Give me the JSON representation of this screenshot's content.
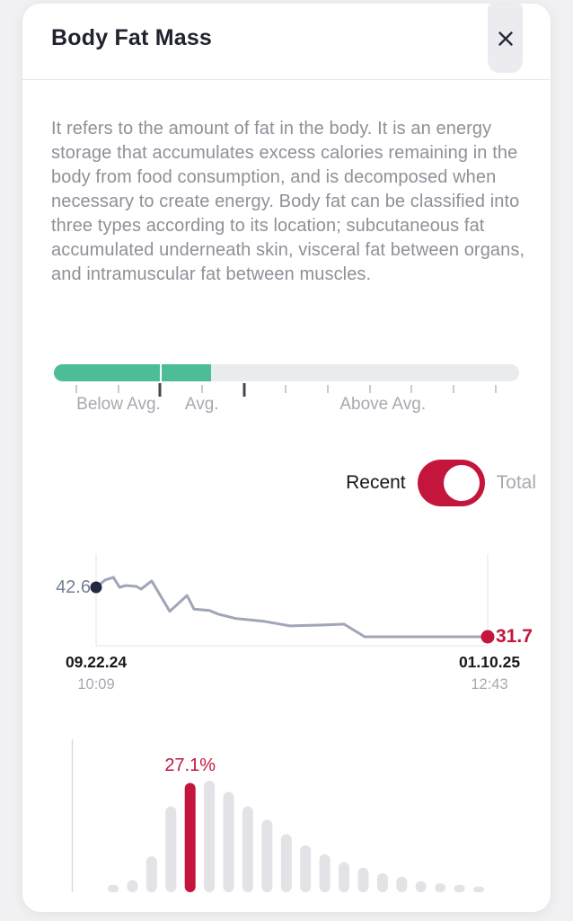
{
  "header": {
    "title": "Body Fat Mass"
  },
  "description": "It refers to the amount of fat in the body. It is an energy storage that accumulates excess calories remaining in the body from food consumption, and is decomposed when necessary to create energy. Body fat can be classified into three types according to its location; subcutaneous fat accumulated underneath skin, visceral fat between organs, and intramuscular fat between muscles.",
  "range_scale": {
    "fill_fraction": 0.338,
    "divider_fraction": 0.228,
    "ticks": [
      {
        "pos": 0.048
      },
      {
        "pos": 0.139
      },
      {
        "pos": 0.228,
        "dark": true
      },
      {
        "pos": 0.318
      },
      {
        "pos": 0.409,
        "dark": true
      },
      {
        "pos": 0.498
      },
      {
        "pos": 0.589
      },
      {
        "pos": 0.679
      },
      {
        "pos": 0.768
      },
      {
        "pos": 0.859
      },
      {
        "pos": 0.95
      }
    ],
    "labels": [
      {
        "text": "Below Avg.",
        "pos": 0.139
      },
      {
        "text": "Avg.",
        "pos": 0.318
      },
      {
        "text": "Above Avg.",
        "pos": 0.707
      }
    ]
  },
  "toggle": {
    "left_label": "Recent",
    "right_label": "Total",
    "selected": "Recent"
  },
  "trend": {
    "first_value": "42.6",
    "last_value": "31.7",
    "start_date": "09.22.24",
    "start_time": "10:09",
    "end_date": "01.10.25",
    "end_time": "12:43"
  },
  "distribution": {
    "highlight_label": "27.1%"
  },
  "chart_data": [
    {
      "type": "line",
      "title": "Body Fat Mass trend (Recent)",
      "x_start": "09.22.24 10:09",
      "x_end": "01.10.25 12:43",
      "ylim": [
        29.7,
        49.9
      ],
      "first_point_value": 42.6,
      "last_point_value": 31.7,
      "points": [
        [
          0.0,
          42.6
        ],
        [
          0.023,
          44.2
        ],
        [
          0.044,
          44.8
        ],
        [
          0.06,
          42.6
        ],
        [
          0.076,
          43.0
        ],
        [
          0.103,
          42.8
        ],
        [
          0.115,
          42.2
        ],
        [
          0.142,
          44.0
        ],
        [
          0.188,
          37.3
        ],
        [
          0.232,
          40.8
        ],
        [
          0.25,
          37.8
        ],
        [
          0.289,
          37.5
        ],
        [
          0.312,
          36.7
        ],
        [
          0.358,
          35.7
        ],
        [
          0.429,
          35.1
        ],
        [
          0.495,
          34.1
        ],
        [
          0.58,
          34.3
        ],
        [
          0.633,
          34.5
        ],
        [
          0.686,
          31.7
        ],
        [
          1.0,
          31.7
        ]
      ]
    },
    {
      "type": "bar",
      "title": "Body fat distribution",
      "highlight_index": 4,
      "highlight_label": "27.1%",
      "values_unit": "relative height (max = 1)",
      "values": [
        0.065,
        0.11,
        0.32,
        0.77,
        0.98,
        1.0,
        0.9,
        0.77,
        0.65,
        0.52,
        0.42,
        0.34,
        0.27,
        0.22,
        0.17,
        0.14,
        0.1,
        0.08,
        0.065,
        0.05
      ]
    }
  ],
  "colors": {
    "accent": "#C4163C",
    "green": "#4CBD97",
    "line": "#A0A5B8",
    "dark_dot": "#232A40",
    "title_text": "#20222E",
    "body_text": "#8F9098",
    "muted_text": "#A7A9B1",
    "divider": "#E7E7EB",
    "close_bg": "#EBEBF0",
    "bar_gray": "#E3E3E7",
    "axis": "#D8D9DE",
    "chart_border": "#ECEDF1",
    "track": "#E9EBEF",
    "tick": "#C9CBD1",
    "tick_dark": "#41464F",
    "window_bg": "#F1F1F4"
  }
}
